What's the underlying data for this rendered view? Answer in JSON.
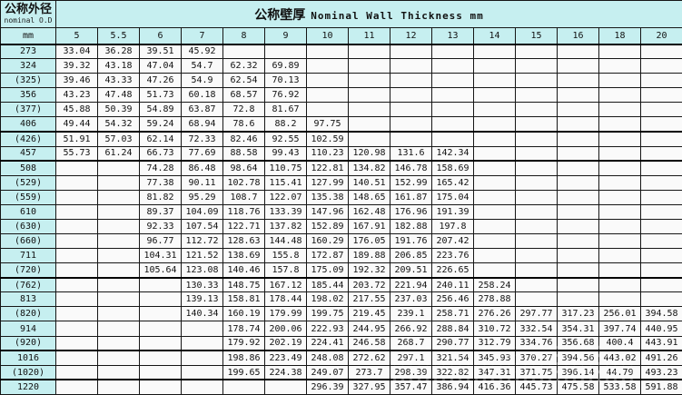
{
  "table": {
    "corner_header": {
      "title": "公称外径",
      "subtitle": "nominal O.D",
      "unit": "mm"
    },
    "main_header": {
      "cn": "公称壁厚",
      "en": "Nominal Wall Thickness mm"
    },
    "thickness_columns": [
      "5",
      "5.5",
      "6",
      "7",
      "8",
      "9",
      "10",
      "11",
      "12",
      "13",
      "14",
      "15",
      "16",
      "18",
      "20"
    ],
    "thick_border_rows": [
      "273",
      "(426)",
      "508",
      "(762)",
      "1016",
      "1220"
    ],
    "rows": [
      {
        "od": "273",
        "values": [
          "33.04",
          "36.28",
          "39.51",
          "45.92",
          "",
          "",
          "",
          "",
          "",
          "",
          "",
          "",
          "",
          "",
          ""
        ]
      },
      {
        "od": "324",
        "values": [
          "39.32",
          "43.18",
          "47.04",
          "54.7",
          "62.32",
          "69.89",
          "",
          "",
          "",
          "",
          "",
          "",
          "",
          "",
          ""
        ]
      },
      {
        "od": "(325)",
        "values": [
          "39.46",
          "43.33",
          "47.26",
          "54.9",
          "62.54",
          "70.13",
          "",
          "",
          "",
          "",
          "",
          "",
          "",
          "",
          ""
        ]
      },
      {
        "od": "356",
        "values": [
          "43.23",
          "47.48",
          "51.73",
          "60.18",
          "68.57",
          "76.92",
          "",
          "",
          "",
          "",
          "",
          "",
          "",
          "",
          ""
        ]
      },
      {
        "od": "(377)",
        "values": [
          "45.88",
          "50.39",
          "54.89",
          "63.87",
          "72.8",
          "81.67",
          "",
          "",
          "",
          "",
          "",
          "",
          "",
          "",
          ""
        ]
      },
      {
        "od": "406",
        "values": [
          "49.44",
          "54.32",
          "59.24",
          "68.94",
          "78.6",
          "88.2",
          "97.75",
          "",
          "",
          "",
          "",
          "",
          "",
          "",
          ""
        ]
      },
      {
        "od": "(426)",
        "values": [
          "51.91",
          "57.03",
          "62.14",
          "72.33",
          "82.46",
          "92.55",
          "102.59",
          "",
          "",
          "",
          "",
          "",
          "",
          "",
          ""
        ]
      },
      {
        "od": "457",
        "values": [
          "55.73",
          "61.24",
          "66.73",
          "77.69",
          "88.58",
          "99.43",
          "110.23",
          "120.98",
          "131.6",
          "142.34",
          "",
          "",
          "",
          "",
          ""
        ]
      },
      {
        "od": "508",
        "values": [
          "",
          "",
          "74.28",
          "86.48",
          "98.64",
          "110.75",
          "122.81",
          "134.82",
          "146.78",
          "158.69",
          "",
          "",
          "",
          "",
          ""
        ]
      },
      {
        "od": "(529)",
        "values": [
          "",
          "",
          "77.38",
          "90.11",
          "102.78",
          "115.41",
          "127.99",
          "140.51",
          "152.99",
          "165.42",
          "",
          "",
          "",
          "",
          ""
        ]
      },
      {
        "od": "(559)",
        "values": [
          "",
          "",
          "81.82",
          "95.29",
          "108.7",
          "122.07",
          "135.38",
          "148.65",
          "161.87",
          "175.04",
          "",
          "",
          "",
          "",
          ""
        ]
      },
      {
        "od": "610",
        "values": [
          "",
          "",
          "89.37",
          "104.09",
          "118.76",
          "133.39",
          "147.96",
          "162.48",
          "176.96",
          "191.39",
          "",
          "",
          "",
          "",
          ""
        ]
      },
      {
        "od": "(630)",
        "values": [
          "",
          "",
          "92.33",
          "107.54",
          "122.71",
          "137.82",
          "152.89",
          "167.91",
          "182.88",
          "197.8",
          "",
          "",
          "",
          "",
          ""
        ]
      },
      {
        "od": "(660)",
        "values": [
          "",
          "",
          "96.77",
          "112.72",
          "128.63",
          "144.48",
          "160.29",
          "176.05",
          "191.76",
          "207.42",
          "",
          "",
          "",
          "",
          ""
        ]
      },
      {
        "od": "711",
        "values": [
          "",
          "",
          "104.31",
          "121.52",
          "138.69",
          "155.8",
          "172.87",
          "189.88",
          "206.85",
          "223.76",
          "",
          "",
          "",
          "",
          ""
        ]
      },
      {
        "od": "(720)",
        "values": [
          "",
          "",
          "105.64",
          "123.08",
          "140.46",
          "157.8",
          "175.09",
          "192.32",
          "209.51",
          "226.65",
          "",
          "",
          "",
          "",
          ""
        ]
      },
      {
        "od": "(762)",
        "values": [
          "",
          "",
          "",
          "130.33",
          "148.75",
          "167.12",
          "185.44",
          "203.72",
          "221.94",
          "240.11",
          "258.24",
          "",
          "",
          "",
          ""
        ]
      },
      {
        "od": "813",
        "values": [
          "",
          "",
          "",
          "139.13",
          "158.81",
          "178.44",
          "198.02",
          "217.55",
          "237.03",
          "256.46",
          "278.88",
          "",
          "",
          "",
          ""
        ]
      },
      {
        "od": "(820)",
        "values": [
          "",
          "",
          "",
          "140.34",
          "160.19",
          "179.99",
          "199.75",
          "219.45",
          "239.1",
          "258.71",
          "276.26",
          "297.77",
          "317.23",
          "256.01",
          "394.58"
        ]
      },
      {
        "od": "914",
        "values": [
          "",
          "",
          "",
          "",
          "178.74",
          "200.06",
          "222.93",
          "244.95",
          "266.92",
          "288.84",
          "310.72",
          "332.54",
          "354.31",
          "397.74",
          "440.95"
        ]
      },
      {
        "od": "(920)",
        "values": [
          "",
          "",
          "",
          "",
          "179.92",
          "202.19",
          "224.41",
          "246.58",
          "268.7",
          "290.77",
          "312.79",
          "334.76",
          "356.68",
          "400.4",
          "443.91"
        ]
      },
      {
        "od": "1016",
        "values": [
          "",
          "",
          "",
          "",
          "198.86",
          "223.49",
          "248.08",
          "272.62",
          "297.1",
          "321.54",
          "345.93",
          "370.27",
          "394.56",
          "443.02",
          "491.26"
        ]
      },
      {
        "od": "(1020)",
        "values": [
          "",
          "",
          "",
          "",
          "199.65",
          "224.38",
          "249.07",
          "273.7",
          "298.39",
          "322.82",
          "347.31",
          "371.75",
          "396.14",
          "44.79",
          "493.23"
        ]
      },
      {
        "od": "1220",
        "values": [
          "",
          "",
          "",
          "",
          "",
          "",
          "296.39",
          "327.95",
          "357.47",
          "386.94",
          "416.36",
          "445.73",
          "475.58",
          "533.58",
          "591.88"
        ]
      }
    ]
  },
  "colors": {
    "header_bg": "#c6eff0",
    "cell_bg": "#fafafa",
    "border": "#161616"
  }
}
